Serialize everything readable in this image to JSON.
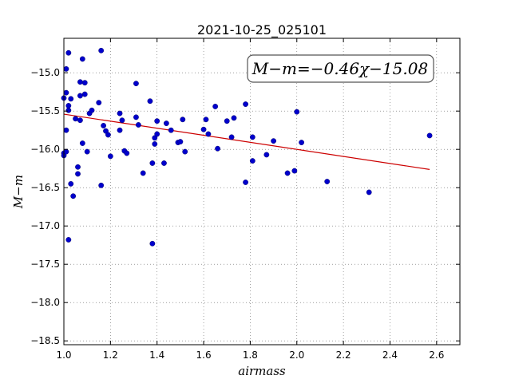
{
  "chart_data": {
    "type": "scatter",
    "title": "2021-10-25_025101",
    "xlabel": "airmass",
    "ylabel": "M−m",
    "annotation": "M−m=−0.46χ−15.08",
    "xlim": [
      1.0,
      2.7
    ],
    "ylim": [
      -18.55,
      -14.55
    ],
    "x_ticks": [
      1.0,
      1.2,
      1.4,
      1.6,
      1.8,
      2.0,
      2.2,
      2.4,
      2.6
    ],
    "x_tick_labels": [
      "1.0",
      "1.2",
      "1.4",
      "1.6",
      "1.8",
      "2.0",
      "2.2",
      "2.4",
      "2.6"
    ],
    "y_ticks": [
      -15.0,
      -15.5,
      -16.0,
      -16.5,
      -17.0,
      -17.5,
      -18.0,
      -18.5
    ],
    "y_tick_labels": [
      "−15.0",
      "−15.5",
      "−16.0",
      "−16.5",
      "−17.0",
      "−17.5",
      "−18.0",
      "−18.5"
    ],
    "grid": true,
    "point_color": "#0000cc",
    "fit_color": "#cc0000",
    "fit": {
      "slope": -0.46,
      "intercept": -15.08,
      "x_range": [
        1.0,
        2.57
      ]
    },
    "points": [
      {
        "x": 1.0,
        "y": -15.33
      },
      {
        "x": 1.0,
        "y": -16.05
      },
      {
        "x": 1.0,
        "y": -16.08
      },
      {
        "x": 1.01,
        "y": -14.95
      },
      {
        "x": 1.01,
        "y": -15.26
      },
      {
        "x": 1.01,
        "y": -15.75
      },
      {
        "x": 1.01,
        "y": -16.03
      },
      {
        "x": 1.02,
        "y": -14.74
      },
      {
        "x": 1.02,
        "y": -15.43
      },
      {
        "x": 1.02,
        "y": -15.49
      },
      {
        "x": 1.02,
        "y": -17.18
      },
      {
        "x": 1.03,
        "y": -15.34
      },
      {
        "x": 1.03,
        "y": -16.45
      },
      {
        "x": 1.04,
        "y": -16.61
      },
      {
        "x": 1.05,
        "y": -15.6
      },
      {
        "x": 1.06,
        "y": -16.32
      },
      {
        "x": 1.06,
        "y": -16.23
      },
      {
        "x": 1.07,
        "y": -15.12
      },
      {
        "x": 1.07,
        "y": -15.3
      },
      {
        "x": 1.07,
        "y": -15.62
      },
      {
        "x": 1.08,
        "y": -14.82
      },
      {
        "x": 1.08,
        "y": -15.92
      },
      {
        "x": 1.09,
        "y": -15.13
      },
      {
        "x": 1.09,
        "y": -15.28
      },
      {
        "x": 1.1,
        "y": -16.03
      },
      {
        "x": 1.11,
        "y": -15.53
      },
      {
        "x": 1.12,
        "y": -15.49
      },
      {
        "x": 1.15,
        "y": -15.39
      },
      {
        "x": 1.16,
        "y": -14.71
      },
      {
        "x": 1.16,
        "y": -16.47
      },
      {
        "x": 1.17,
        "y": -15.69
      },
      {
        "x": 1.18,
        "y": -15.76
      },
      {
        "x": 1.19,
        "y": -15.81
      },
      {
        "x": 1.2,
        "y": -16.09
      },
      {
        "x": 1.24,
        "y": -15.53
      },
      {
        "x": 1.24,
        "y": -15.75
      },
      {
        "x": 1.25,
        "y": -15.62
      },
      {
        "x": 1.26,
        "y": -16.02
      },
      {
        "x": 1.27,
        "y": -16.05
      },
      {
        "x": 1.31,
        "y": -15.14
      },
      {
        "x": 1.31,
        "y": -15.58
      },
      {
        "x": 1.32,
        "y": -15.68
      },
      {
        "x": 1.34,
        "y": -16.31
      },
      {
        "x": 1.37,
        "y": -15.37
      },
      {
        "x": 1.38,
        "y": -16.18
      },
      {
        "x": 1.38,
        "y": -17.23
      },
      {
        "x": 1.39,
        "y": -15.85
      },
      {
        "x": 1.39,
        "y": -15.93
      },
      {
        "x": 1.4,
        "y": -15.63
      },
      {
        "x": 1.4,
        "y": -15.8
      },
      {
        "x": 1.43,
        "y": -16.18
      },
      {
        "x": 1.44,
        "y": -15.66
      },
      {
        "x": 1.46,
        "y": -15.75
      },
      {
        "x": 1.49,
        "y": -15.91
      },
      {
        "x": 1.5,
        "y": -15.9
      },
      {
        "x": 1.51,
        "y": -15.61
      },
      {
        "x": 1.52,
        "y": -16.03
      },
      {
        "x": 1.6,
        "y": -15.74
      },
      {
        "x": 1.61,
        "y": -15.61
      },
      {
        "x": 1.62,
        "y": -15.8
      },
      {
        "x": 1.65,
        "y": -15.44
      },
      {
        "x": 1.66,
        "y": -15.99
      },
      {
        "x": 1.7,
        "y": -15.63
      },
      {
        "x": 1.72,
        "y": -15.84
      },
      {
        "x": 1.73,
        "y": -15.59
      },
      {
        "x": 1.78,
        "y": -15.41
      },
      {
        "x": 1.78,
        "y": -16.43
      },
      {
        "x": 1.81,
        "y": -15.84
      },
      {
        "x": 1.81,
        "y": -16.15
      },
      {
        "x": 1.87,
        "y": -16.07
      },
      {
        "x": 1.9,
        "y": -15.89
      },
      {
        "x": 1.96,
        "y": -16.31
      },
      {
        "x": 1.99,
        "y": -16.28
      },
      {
        "x": 2.0,
        "y": -15.51
      },
      {
        "x": 2.02,
        "y": -15.91
      },
      {
        "x": 2.13,
        "y": -16.42
      },
      {
        "x": 2.31,
        "y": -16.56
      },
      {
        "x": 2.57,
        "y": -15.82
      }
    ]
  }
}
